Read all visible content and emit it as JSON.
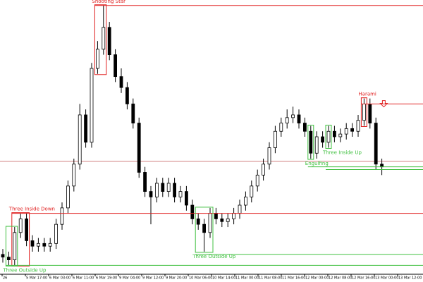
{
  "chart_data": {
    "type": "candlestick",
    "x_labels": [
      "26",
      "5 Mar 17:00",
      "6 Mar 03:00",
      "6 Mar 11:00",
      "6 Mar 19:00",
      "9 Mar 04:00",
      "9 Mar 12:00",
      "9 Mar 20:00",
      "10 Mar 06:00",
      "10 Mar 14:00",
      "11 Mar 00:00",
      "11 Mar 08:00",
      "11 Mar 16:00",
      "12 Mar 00:00",
      "12 Mar 08:00",
      "12 Mar 16:00",
      "13 Mar 00:00",
      "13 Mar 12:00"
    ],
    "ylim": [
      0,
      100
    ],
    "ohlc": [
      [
        7,
        9,
        4,
        6
      ],
      [
        6,
        8,
        3,
        5
      ],
      [
        5,
        17,
        3,
        15
      ],
      [
        15,
        22,
        13,
        20
      ],
      [
        20,
        22,
        10,
        12
      ],
      [
        12,
        14,
        8,
        10
      ],
      [
        10,
        13,
        8,
        11
      ],
      [
        11,
        13,
        8,
        10
      ],
      [
        10,
        13,
        8,
        11
      ],
      [
        11,
        20,
        9,
        18
      ],
      [
        18,
        26,
        16,
        24
      ],
      [
        24,
        34,
        22,
        32
      ],
      [
        32,
        42,
        30,
        40
      ],
      [
        40,
        62,
        38,
        58
      ],
      [
        58,
        60,
        46,
        48
      ],
      [
        48,
        77,
        46,
        75
      ],
      [
        75,
        85,
        73,
        82
      ],
      [
        82,
        98,
        80,
        90
      ],
      [
        90,
        92,
        78,
        80
      ],
      [
        80,
        82,
        70,
        72
      ],
      [
        72,
        75,
        66,
        68
      ],
      [
        68,
        70,
        60,
        62
      ],
      [
        62,
        64,
        53,
        55
      ],
      [
        55,
        57,
        35,
        37
      ],
      [
        37,
        39,
        28,
        30
      ],
      [
        30,
        32,
        18,
        28
      ],
      [
        28,
        35,
        26,
        33
      ],
      [
        33,
        35,
        28,
        30
      ],
      [
        30,
        35,
        28,
        33
      ],
      [
        33,
        35,
        26,
        28
      ],
      [
        28,
        32,
        26,
        30
      ],
      [
        30,
        32,
        23,
        25
      ],
      [
        25,
        27,
        18,
        20
      ],
      [
        20,
        22,
        16,
        18
      ],
      [
        18,
        20,
        8,
        15
      ],
      [
        15,
        24,
        13,
        22
      ],
      [
        22,
        24,
        18,
        20
      ],
      [
        20,
        22,
        17,
        19
      ],
      [
        19,
        22,
        17,
        20
      ],
      [
        20,
        24,
        18,
        22
      ],
      [
        22,
        27,
        20,
        25
      ],
      [
        25,
        30,
        23,
        28
      ],
      [
        28,
        34,
        26,
        32
      ],
      [
        32,
        38,
        30,
        36
      ],
      [
        36,
        42,
        34,
        40
      ],
      [
        40,
        48,
        38,
        46
      ],
      [
        46,
        54,
        44,
        52
      ],
      [
        52,
        57,
        50,
        55
      ],
      [
        55,
        60,
        53,
        57
      ],
      [
        57,
        61,
        55,
        58
      ],
      [
        58,
        60,
        53,
        55
      ],
      [
        55,
        57,
        50,
        52
      ],
      [
        52,
        54,
        42,
        44
      ],
      [
        44,
        52,
        42,
        50
      ],
      [
        50,
        52,
        46,
        48
      ],
      [
        48,
        54,
        46,
        52
      ],
      [
        52,
        54,
        48,
        50
      ],
      [
        50,
        53,
        48,
        51
      ],
      [
        51,
        55,
        49,
        53
      ],
      [
        53,
        55,
        50,
        52
      ],
      [
        52,
        58,
        50,
        56
      ],
      [
        56,
        64,
        54,
        62
      ],
      [
        62,
        64,
        53,
        55
      ],
      [
        55,
        57,
        38,
        40
      ],
      [
        40,
        42,
        36,
        39
      ]
    ],
    "price_line": 41,
    "patterns": [
      {
        "label": "Shooting Star",
        "color": "#e02020",
        "level": 98,
        "candles": [
          16,
          17
        ]
      },
      {
        "label": "Harami",
        "color": "#e02020",
        "level": 62,
        "candles": [
          61,
          61
        ]
      },
      {
        "label": "Three Inside Down",
        "color": "#e02020",
        "level": 22,
        "candles": [
          2,
          4
        ]
      },
      {
        "label": "Three Outside Up",
        "color": "#40c040",
        "level": 7,
        "candles": [
          33,
          35
        ]
      },
      {
        "label": "Three Inside Up",
        "color": "#40c040",
        "level": 38,
        "candles": [
          55,
          55
        ]
      },
      {
        "label": "Engulfing",
        "color": "#40c040",
        "level": 39,
        "candles": [
          52,
          52
        ]
      },
      {
        "label": "Three Outside Up",
        "color": "#40c040",
        "level": 3,
        "candles": [
          1,
          2
        ]
      }
    ]
  }
}
